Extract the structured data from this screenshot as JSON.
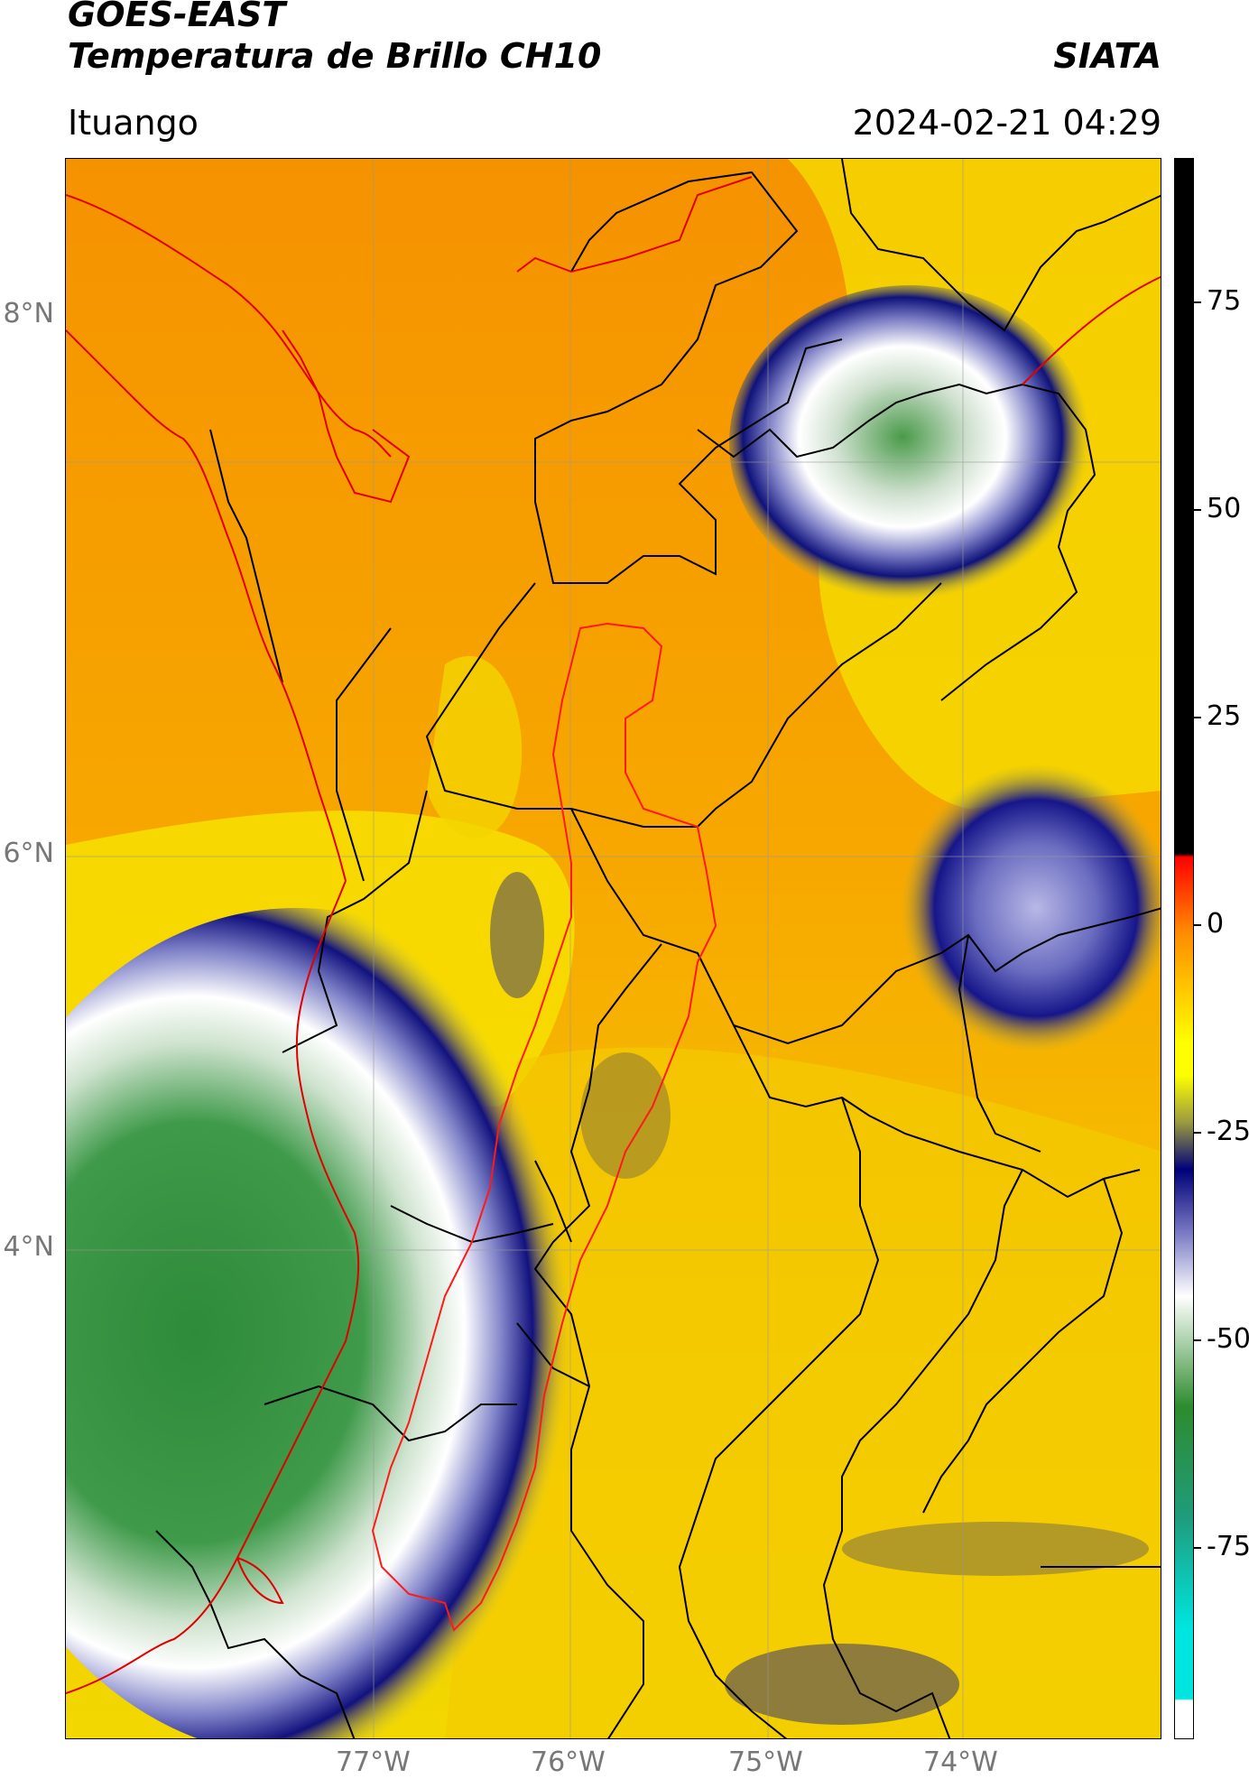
{
  "header": {
    "line1": "GOES-EAST",
    "line2": "Temperatura de Brillo CH10",
    "brand": "SIATA",
    "region": "Ituango",
    "timestamp": "2024-02-21 04:29"
  },
  "map": {
    "lat_labels": [
      "8°N",
      "6°N",
      "4°N"
    ],
    "lon_labels": [
      "77°W",
      "76°W",
      "75°W",
      "74°W"
    ],
    "background_color": "#f5a300",
    "border_colors": {
      "country": "#e00000",
      "department": "#000000"
    }
  },
  "colorbar": {
    "ticks": [
      "75",
      "50",
      "25",
      "0",
      "-25",
      "-50",
      "-75"
    ],
    "colors": [
      "#000000",
      "#ff0000",
      "#ff8c00",
      "#ffff00",
      "#00007a",
      "#ffffff",
      "#2e8b2e",
      "#00e5e0"
    ]
  }
}
